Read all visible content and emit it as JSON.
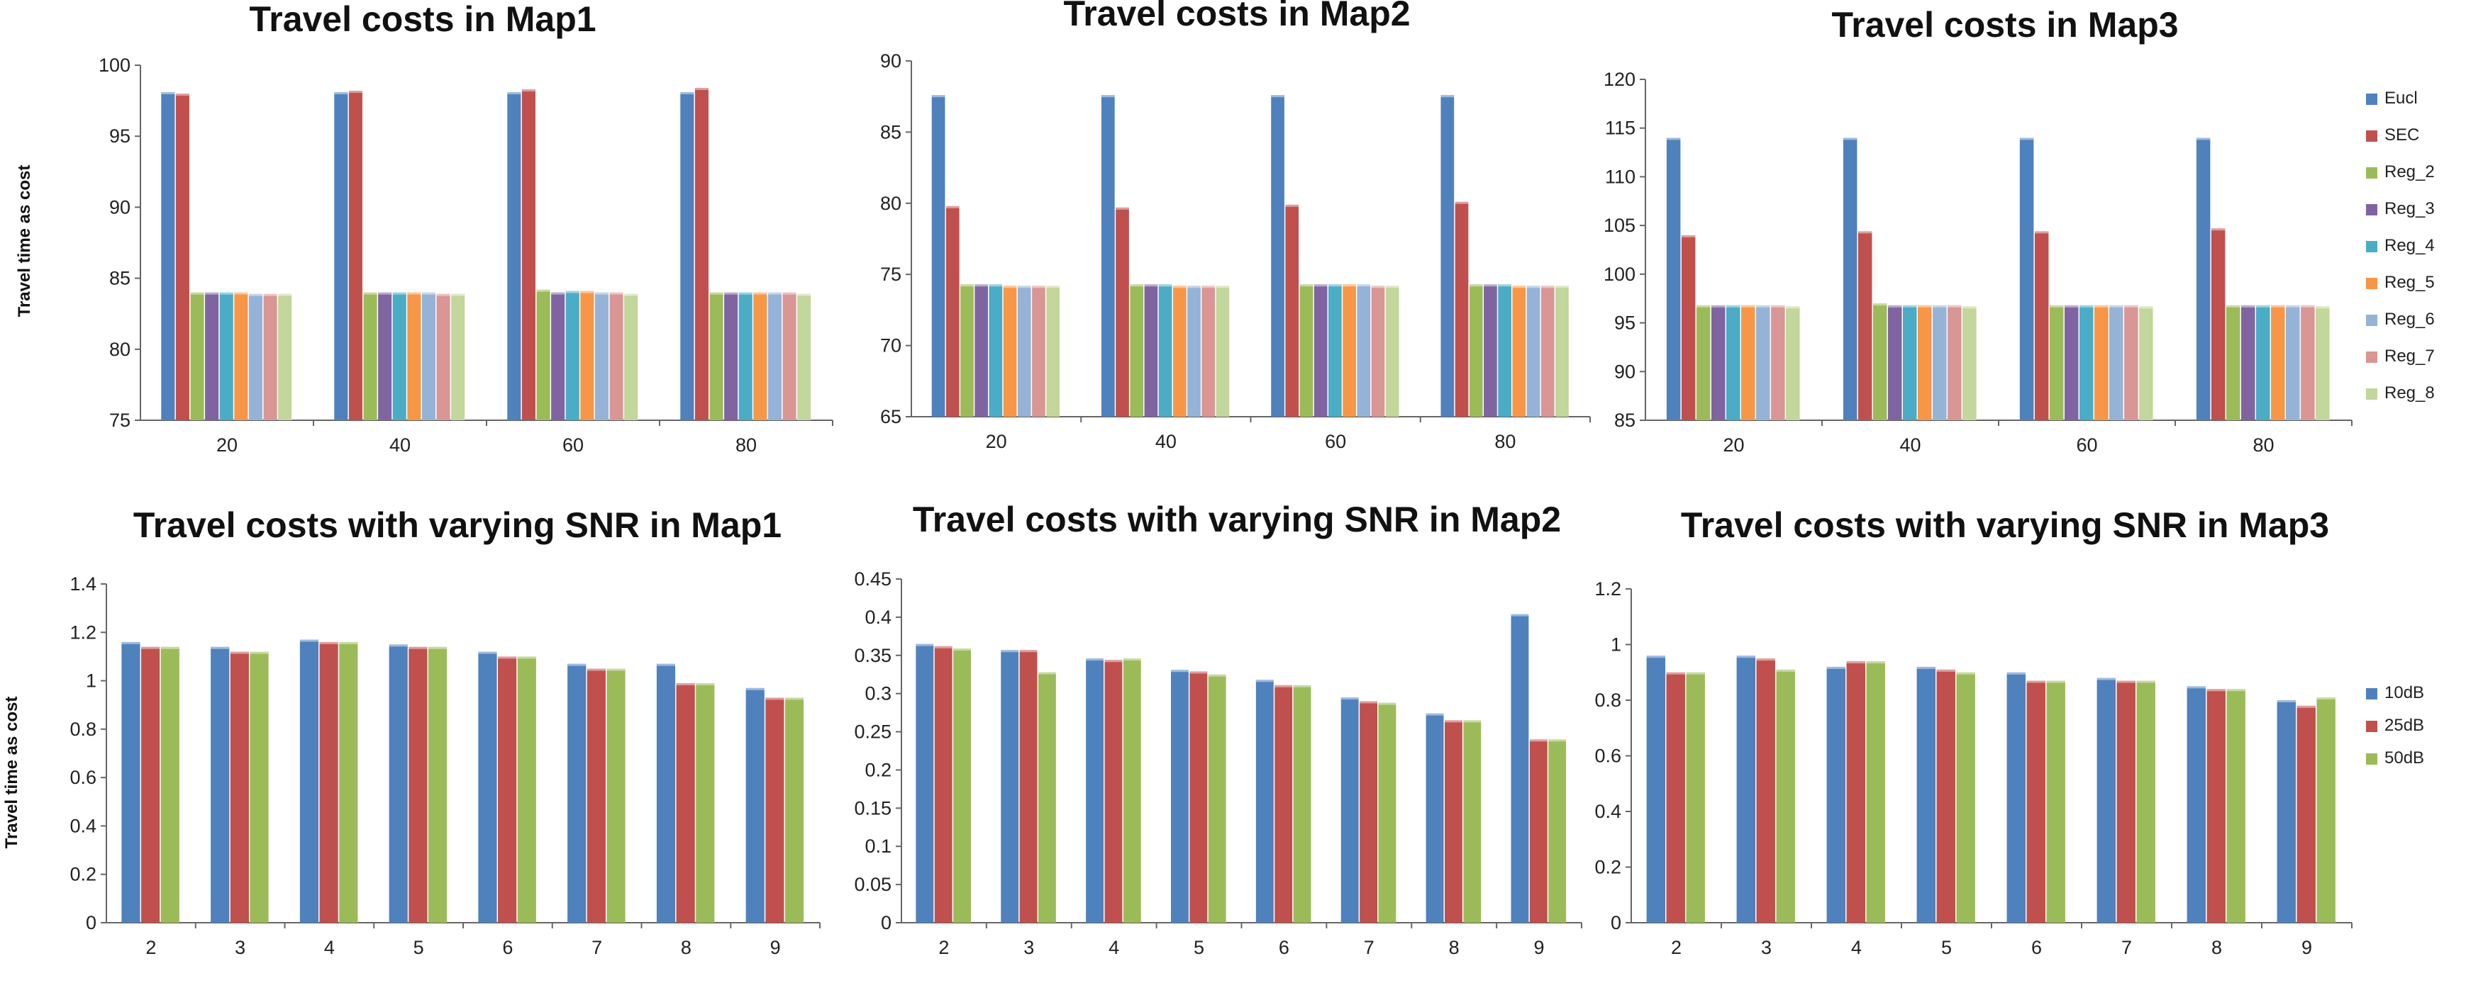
{
  "colors": {
    "Eucl": "#4f81bd",
    "SEC": "#c0504d",
    "Reg_2": "#9bbb59",
    "Reg_3": "#8064a2",
    "Reg_4": "#4bacc6",
    "Reg_5": "#f79646",
    "Reg_6": "#95b3d7",
    "Reg_7": "#d99694",
    "Reg_8": "#c3d69b",
    "10dB": "#4f81bd",
    "25dB": "#c0504d",
    "50dB": "#9bbb59"
  },
  "ylabel": "Travel time as cost",
  "legend_top": [
    "Eucl",
    "SEC",
    "Reg_2",
    "Reg_3",
    "Reg_4",
    "Reg_5",
    "Reg_6",
    "Reg_7",
    "Reg_8"
  ],
  "legend_bottom": [
    "10dB",
    "25dB",
    "50dB"
  ],
  "chart_data": [
    {
      "type": "bar",
      "title": "Travel costs in Map1",
      "xlabel": "",
      "ylabel": "Travel time as cost",
      "categories": [
        "20",
        "40",
        "60",
        "80"
      ],
      "ylim": [
        75,
        100
      ],
      "yticks": [
        "75",
        "80",
        "85",
        "90",
        "95",
        "100"
      ],
      "series": [
        {
          "name": "Eucl",
          "values": [
            98.1,
            98.1,
            98.1,
            98.1
          ]
        },
        {
          "name": "SEC",
          "values": [
            98.0,
            98.2,
            98.3,
            98.4
          ]
        },
        {
          "name": "Reg_2",
          "values": [
            84.0,
            84.0,
            84.2,
            84.0
          ]
        },
        {
          "name": "Reg_3",
          "values": [
            84.0,
            84.0,
            84.0,
            84.0
          ]
        },
        {
          "name": "Reg_4",
          "values": [
            84.0,
            84.0,
            84.1,
            84.0
          ]
        },
        {
          "name": "Reg_5",
          "values": [
            84.0,
            84.0,
            84.1,
            84.0
          ]
        },
        {
          "name": "Reg_6",
          "values": [
            83.9,
            84.0,
            84.0,
            84.0
          ]
        },
        {
          "name": "Reg_7",
          "values": [
            83.9,
            83.9,
            84.0,
            84.0
          ]
        },
        {
          "name": "Reg_8",
          "values": [
            83.9,
            83.9,
            83.9,
            83.9
          ]
        }
      ]
    },
    {
      "type": "bar",
      "title": "Travel costs in Map2",
      "xlabel": "",
      "ylabel": "",
      "categories": [
        "20",
        "40",
        "60",
        "80"
      ],
      "ylim": [
        65,
        90
      ],
      "yticks": [
        "65",
        "70",
        "75",
        "80",
        "85",
        "90"
      ],
      "series": [
        {
          "name": "Eucl",
          "values": [
            87.6,
            87.6,
            87.6,
            87.6
          ]
        },
        {
          "name": "SEC",
          "values": [
            79.8,
            79.7,
            79.9,
            80.1
          ]
        },
        {
          "name": "Reg_2",
          "values": [
            74.3,
            74.3,
            74.3,
            74.3
          ]
        },
        {
          "name": "Reg_3",
          "values": [
            74.3,
            74.3,
            74.3,
            74.3
          ]
        },
        {
          "name": "Reg_4",
          "values": [
            74.3,
            74.3,
            74.3,
            74.3
          ]
        },
        {
          "name": "Reg_5",
          "values": [
            74.2,
            74.2,
            74.3,
            74.2
          ]
        },
        {
          "name": "Reg_6",
          "values": [
            74.2,
            74.2,
            74.3,
            74.2
          ]
        },
        {
          "name": "Reg_7",
          "values": [
            74.2,
            74.2,
            74.2,
            74.2
          ]
        },
        {
          "name": "Reg_8",
          "values": [
            74.2,
            74.2,
            74.2,
            74.2
          ]
        }
      ]
    },
    {
      "type": "bar",
      "title": "Travel costs in Map3",
      "xlabel": "",
      "ylabel": "",
      "categories": [
        "20",
        "40",
        "60",
        "80"
      ],
      "ylim": [
        85,
        120
      ],
      "yticks": [
        "85",
        "90",
        "95",
        "100",
        "105",
        "110",
        "115",
        "120"
      ],
      "series": [
        {
          "name": "Eucl",
          "values": [
            114.0,
            114.0,
            114.0,
            114.0
          ]
        },
        {
          "name": "SEC",
          "values": [
            104.0,
            104.4,
            104.4,
            104.7
          ]
        },
        {
          "name": "Reg_2",
          "values": [
            96.8,
            97.0,
            96.8,
            96.8
          ]
        },
        {
          "name": "Reg_3",
          "values": [
            96.8,
            96.8,
            96.8,
            96.8
          ]
        },
        {
          "name": "Reg_4",
          "values": [
            96.8,
            96.8,
            96.8,
            96.8
          ]
        },
        {
          "name": "Reg_5",
          "values": [
            96.8,
            96.8,
            96.8,
            96.8
          ]
        },
        {
          "name": "Reg_6",
          "values": [
            96.8,
            96.8,
            96.8,
            96.8
          ]
        },
        {
          "name": "Reg_7",
          "values": [
            96.8,
            96.8,
            96.8,
            96.8
          ]
        },
        {
          "name": "Reg_8",
          "values": [
            96.7,
            96.7,
            96.7,
            96.7
          ]
        }
      ]
    },
    {
      "type": "bar",
      "title": "Travel costs with varying SNR in Map1",
      "xlabel": "",
      "ylabel": "Travel time as cost",
      "categories": [
        "2",
        "3",
        "4",
        "5",
        "6",
        "7",
        "8",
        "9"
      ],
      "ylim": [
        0,
        1.4
      ],
      "yticks": [
        "0",
        "0.2",
        "0.4",
        "0.6",
        "0.8",
        "1",
        "1.2",
        "1.4"
      ],
      "series": [
        {
          "name": "10dB",
          "values": [
            1.16,
            1.14,
            1.17,
            1.15,
            1.12,
            1.07,
            1.07,
            0.97
          ]
        },
        {
          "name": "25dB",
          "values": [
            1.14,
            1.12,
            1.16,
            1.14,
            1.1,
            1.05,
            0.99,
            0.93
          ]
        },
        {
          "name": "50dB",
          "values": [
            1.14,
            1.12,
            1.16,
            1.14,
            1.1,
            1.05,
            0.99,
            0.93
          ]
        }
      ]
    },
    {
      "type": "bar",
      "title": "Travel costs with varying SNR in Map2",
      "xlabel": "",
      "ylabel": "",
      "categories": [
        "2",
        "3",
        "4",
        "5",
        "6",
        "7",
        "8",
        "9"
      ],
      "ylim": [
        0,
        0.45
      ],
      "yticks": [
        "0",
        "0.05",
        "0.1",
        "0.15",
        "0.2",
        "0.25",
        "0.3",
        "0.35",
        "0.4",
        "0.45"
      ],
      "series": [
        {
          "name": "10dB",
          "values": [
            0.365,
            0.357,
            0.346,
            0.331,
            0.318,
            0.295,
            0.274,
            0.404
          ]
        },
        {
          "name": "25dB",
          "values": [
            0.362,
            0.357,
            0.344,
            0.329,
            0.311,
            0.29,
            0.265,
            0.24
          ]
        },
        {
          "name": "50dB",
          "values": [
            0.359,
            0.328,
            0.346,
            0.325,
            0.311,
            0.288,
            0.265,
            0.24
          ]
        }
      ]
    },
    {
      "type": "bar",
      "title": "Travel costs with varying SNR in Map3",
      "xlabel": "",
      "ylabel": "",
      "categories": [
        "2",
        "3",
        "4",
        "5",
        "6",
        "7",
        "8",
        "9"
      ],
      "ylim": [
        0,
        1.2
      ],
      "yticks": [
        "0",
        "0.2",
        "0.4",
        "0.6",
        "0.8",
        "1",
        "1.2"
      ],
      "series": [
        {
          "name": "10dB",
          "values": [
            0.96,
            0.96,
            0.92,
            0.92,
            0.9,
            0.88,
            0.85,
            0.8
          ]
        },
        {
          "name": "25dB",
          "values": [
            0.9,
            0.95,
            0.94,
            0.91,
            0.87,
            0.87,
            0.84,
            0.78
          ]
        },
        {
          "name": "50dB",
          "values": [
            0.9,
            0.91,
            0.94,
            0.9,
            0.87,
            0.87,
            0.84,
            0.81
          ]
        }
      ]
    }
  ]
}
